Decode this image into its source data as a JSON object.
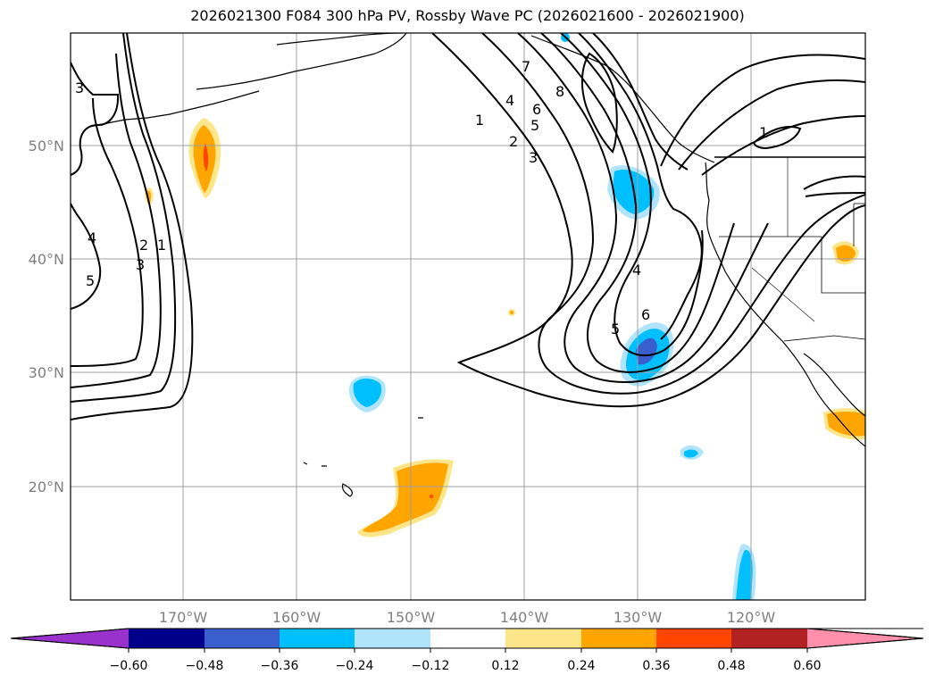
{
  "title": "2026021300 F084 300 hPa PV, Rossby Wave PC (2026021600 - 2026021900)",
  "lat_ticks": [
    "50°N",
    "40°N",
    "30°N",
    "20°N"
  ],
  "lon_ticks": [
    "170°W",
    "160°W",
    "150°W",
    "140°W",
    "130°W",
    "120°W"
  ],
  "contour_labels": [
    "3",
    "4",
    "5",
    "2",
    "3",
    "1",
    "1",
    "2",
    "3",
    "4",
    "5",
    "6",
    "7",
    "8",
    "4",
    "5",
    "6",
    "1"
  ],
  "colorbar": {
    "ticks": [
      "−0.60",
      "−0.48",
      "−0.36",
      "−0.24",
      "−0.12",
      "0.12",
      "0.24",
      "0.36",
      "0.48",
      "0.60"
    ],
    "colors": [
      "#9932cc",
      "#00008b",
      "#3a5fcd",
      "#00bfff",
      "#afe4fa",
      "#ffffff",
      "#fde68a",
      "#ffa500",
      "#ff4500",
      "#b22222",
      "#ff8fab"
    ]
  },
  "colors": {
    "frame": "#000000",
    "grid": "#a0a0a0",
    "coast": "#000000",
    "tick_label": "#808080"
  }
}
